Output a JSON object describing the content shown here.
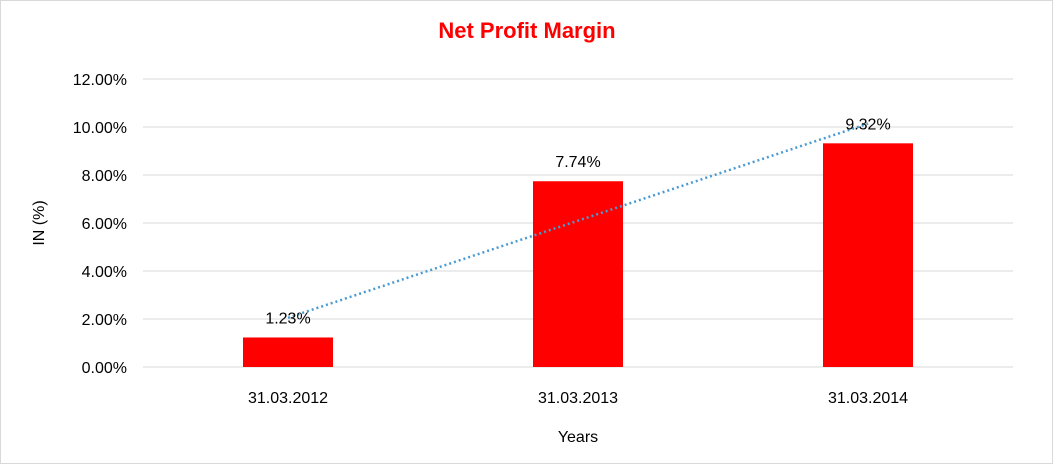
{
  "chart_data": {
    "type": "bar",
    "title": "Net Profit Margin",
    "xlabel": "Years",
    "ylabel": "IN (%)",
    "categories": [
      "31.03.2012",
      "31.03.2013",
      "31.03.2014"
    ],
    "values": [
      1.23,
      7.74,
      9.32
    ],
    "data_labels": [
      "1.23%",
      "7.74%",
      "9.32%"
    ],
    "ylim": [
      0,
      12
    ],
    "yticks": [
      0,
      2,
      4,
      6,
      8,
      10,
      12
    ],
    "ytick_labels": [
      "0.00%",
      "2.00%",
      "4.00%",
      "6.00%",
      "8.00%",
      "10.00%",
      "12.00%"
    ],
    "trendline": {
      "type": "linear",
      "style": "dotted",
      "color": "#4a9bd1"
    },
    "grid": true,
    "legend": "none",
    "colors": {
      "bar": "#ff0000",
      "title": "#ff0000",
      "grid": "#d9d9d9"
    }
  }
}
